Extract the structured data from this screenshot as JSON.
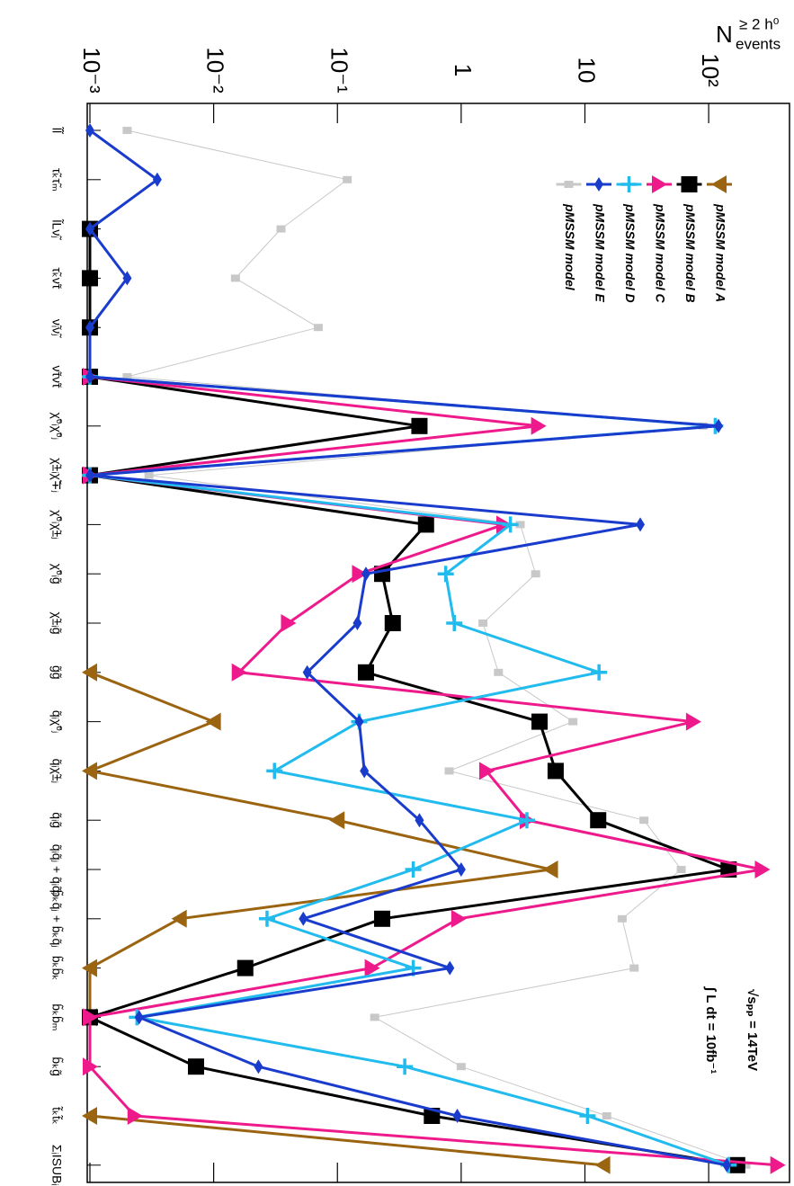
{
  "chart_data": {
    "type": "line",
    "value_axis_label": "N",
    "value_axis_label_sup": "≥ 2 h⁰",
    "value_axis_label_sub": "events",
    "log_scale": true,
    "xlim": [
      0.001,
      450
    ],
    "xticks": [
      {
        "value": 0.001,
        "label": "10⁻³"
      },
      {
        "value": 0.01,
        "label": "10⁻²"
      },
      {
        "value": 0.1,
        "label": "10⁻¹"
      },
      1,
      10,
      {
        "value": 100,
        "label": "10²"
      }
    ],
    "categories": [
      "l̃l̃",
      "τ̃ₖτ̃ₘ",
      "l̃Lν̃ⱼ",
      "τ̃ₖν̃τ",
      "ν̃ᵢν̃ⱼ",
      "ν̃τν̃τ",
      "χ̃⁰ᵢχ̃⁰ⱼ",
      "χ̃±ᵢχ̃∓ⱼ",
      "χ̃⁰ᵢχ̃±ⱼ",
      "χ̃⁰ᵢg̃",
      "χ̃±ᵢg̃",
      "g̃g̃",
      "q̃ᵢχ̃⁰ⱼ",
      "q̃ᵢχ̃±ⱼ",
      "q̃ᵢg̃",
      "q̃ᵢq̃ⱼ + q̃ᵢq̃ⱼ",
      "b̃ₖq̃ⱼ + b̃ₖq̃ⱼ",
      "b̃ₖb̃ₖ",
      "b̃ₖb̃ₘ",
      "b̃ₖg̃",
      "t̃ₖt̃ₖ",
      "ΣᵢISUBᵢ"
    ],
    "series": [
      {
        "name": "pMSSM model A",
        "color": "#9a6410",
        "marker": "triangle-left",
        "values": [
          null,
          null,
          null,
          null,
          null,
          null,
          null,
          null,
          null,
          null,
          null,
          0.001,
          0.01,
          0.001,
          0.1,
          5.3,
          0.0053,
          0.001,
          0.001,
          null,
          0.001,
          14
        ]
      },
      {
        "name": "pMSSM model B",
        "color": "#000000",
        "marker": "square",
        "values": [
          null,
          null,
          0.001,
          0.001,
          0.001,
          0.001,
          0.46,
          0.001,
          0.52,
          0.23,
          0.28,
          0.17,
          4.3,
          5.8,
          12.8,
          145,
          0.23,
          0.018,
          0.001,
          0.0072,
          0.58,
          170
        ]
      },
      {
        "name": "pMSSM model C",
        "color": "#ee1a8c",
        "marker": "triangle-right",
        "values": [
          null,
          null,
          null,
          null,
          null,
          0.001,
          4.2,
          0.001,
          2.2,
          0.15,
          0.04,
          0.016,
          75,
          1.6,
          3.4,
          270,
          0.95,
          0.19,
          0.001,
          0.001,
          0.0023,
          360
        ]
      },
      {
        "name": "pMSSM model D",
        "color": "#22bbee",
        "marker": "cross",
        "values": [
          null,
          null,
          null,
          null,
          null,
          0.001,
          113,
          0.001,
          2.5,
          0.75,
          0.88,
          13,
          0.15,
          0.031,
          3.4,
          0.41,
          0.027,
          0.41,
          0.0024,
          0.35,
          10.5,
          145
        ]
      },
      {
        "name": "pMSSM model E",
        "color": "#1a3ccc",
        "marker": "diamond",
        "values": [
          0.001,
          0.0035,
          0.001,
          0.002,
          0.001,
          0.001,
          120,
          0.001,
          28,
          0.17,
          0.145,
          0.057,
          0.15,
          0.165,
          0.46,
          1.0,
          0.053,
          0.81,
          0.0025,
          0.023,
          0.93,
          140
        ]
      },
      {
        "name": "pMSSM model",
        "color": "#c8c8c8",
        "marker": "small-square",
        "values": [
          0.002,
          0.12,
          0.035,
          0.015,
          0.07,
          0.002,
          90,
          0.003,
          3,
          4,
          1.5,
          2,
          8,
          0.8,
          30,
          60,
          20,
          25,
          0.2,
          1,
          15,
          200
        ]
      }
    ],
    "annotations": [
      "√sₚₚ = 14TeV",
      "∫ L dt = 10fb⁻¹"
    ]
  }
}
